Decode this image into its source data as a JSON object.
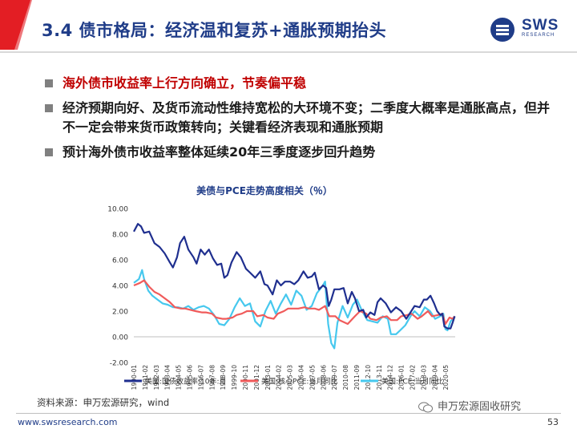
{
  "header": {
    "title": "3.4 债市格局：经济温和复苏+通胀预期抬头",
    "logo_text": "SWS",
    "logo_sub": "RESEARCH"
  },
  "bullets": [
    {
      "text": "海外债市收益率上行方向确立，节奏偏平稳",
      "highlight": true
    },
    {
      "text": "经济预期向好、及货币流动性维持宽松的大环境不变；二季度大概率是通胀高点，但并不一定会带来货币政策转向；关键看经济表现和通胀预期",
      "highlight": false
    },
    {
      "text": "预计海外债市收益率整体延续20年三季度逐步回升趋势",
      "highlight": false
    }
  ],
  "chart_data": {
    "type": "line",
    "title": "美债与PCE走势高度相关（％）",
    "ylim": [
      -2,
      10
    ],
    "yticks": [
      "10.00",
      "8.00",
      "6.00",
      "4.00",
      "2.00",
      "0.00",
      "-2.00"
    ],
    "x_start": 1990.0,
    "x_end": 2021.25,
    "xtick_labels": [
      "1990-01",
      "1991-02",
      "1992-03",
      "1993-04",
      "1994-05",
      "1995-06",
      "1996-07",
      "1997-08",
      "1998-09",
      "1999-10",
      "2000-11",
      "2001-12",
      "2003-01",
      "2004-02",
      "2005-03",
      "2006-04",
      "2007-05",
      "2008-06",
      "2009-07",
      "2010-08",
      "2011-09",
      "2012-10",
      "2013-11",
      "2014-12",
      "2016-01",
      "2017-02",
      "2018-03",
      "2019-04",
      "2020-05"
    ],
    "legend": [
      "美国:国债收益率:10年:月",
      "美国:核心PCE:当月同比",
      "美国:PCE:当月同比"
    ],
    "series": [
      {
        "name": "美国:国债收益率:10年:月",
        "color": "#1f2f8f",
        "x": [
          1990.0,
          1990.4,
          1990.7,
          1991.0,
          1991.5,
          1992.0,
          1992.5,
          1993.0,
          1993.5,
          1993.8,
          1994.2,
          1994.5,
          1994.9,
          1995.3,
          1995.8,
          1996.1,
          1996.5,
          1996.9,
          1997.3,
          1997.7,
          1998.1,
          1998.5,
          1998.8,
          1999.1,
          1999.5,
          2000.0,
          2000.4,
          2000.9,
          2001.3,
          2001.8,
          2002.3,
          2002.7,
          2003.0,
          2003.5,
          2003.9,
          2004.3,
          2004.7,
          2005.2,
          2005.6,
          2006.0,
          2006.5,
          2006.9,
          2007.3,
          2007.6,
          2008.0,
          2008.4,
          2008.7,
          2008.95,
          2009.2,
          2009.5,
          2010.0,
          2010.4,
          2010.8,
          2011.2,
          2011.5,
          2011.9,
          2012.3,
          2012.6,
          2013.0,
          2013.4,
          2013.7,
          2014.0,
          2014.5,
          2015.0,
          2015.5,
          2016.0,
          2016.5,
          2016.9,
          2017.3,
          2017.8,
          2018.2,
          2018.5,
          2018.85,
          2019.2,
          2019.5,
          2019.8,
          2020.0,
          2020.2,
          2020.5,
          2020.8,
          2021.0,
          2021.2
        ],
        "y": [
          8.2,
          8.8,
          8.6,
          8.1,
          8.2,
          7.3,
          7.0,
          6.5,
          5.8,
          5.4,
          6.2,
          7.3,
          7.8,
          6.8,
          6.2,
          5.7,
          6.8,
          6.4,
          6.8,
          6.1,
          5.6,
          5.7,
          4.6,
          4.8,
          5.8,
          6.6,
          6.2,
          5.3,
          5.0,
          4.6,
          5.1,
          4.1,
          4.0,
          3.3,
          4.4,
          4.0,
          4.3,
          4.3,
          4.1,
          4.4,
          5.1,
          4.6,
          4.7,
          5.0,
          3.7,
          4.0,
          3.8,
          2.4,
          2.9,
          3.7,
          3.7,
          3.8,
          2.6,
          3.5,
          3.0,
          2.0,
          2.1,
          1.5,
          1.9,
          1.7,
          2.7,
          3.0,
          2.6,
          1.9,
          2.3,
          2.0,
          1.4,
          1.9,
          2.4,
          2.3,
          2.9,
          2.9,
          3.2,
          2.6,
          2.0,
          1.7,
          1.8,
          0.8,
          0.65,
          0.65,
          1.1,
          1.6
        ]
      },
      {
        "name": "美国:核心PCE:当月同比",
        "color": "#f05b5b",
        "x": [
          1990.0,
          1990.6,
          1991.0,
          1991.5,
          1992.0,
          1992.5,
          1993.0,
          1993.5,
          1994.0,
          1994.6,
          1995.0,
          1995.5,
          1996.0,
          1996.6,
          1997.0,
          1997.6,
          1998.0,
          1998.6,
          1999.0,
          1999.6,
          2000.0,
          2000.5,
          2001.0,
          2001.6,
          2002.0,
          2002.6,
          2003.0,
          2003.6,
          2004.0,
          2004.6,
          2005.0,
          2005.6,
          2006.0,
          2006.6,
          2007.0,
          2007.6,
          2008.0,
          2008.6,
          2009.0,
          2009.6,
          2010.0,
          2010.8,
          2011.5,
          2012.0,
          2012.6,
          2013.0,
          2013.6,
          2014.0,
          2014.6,
          2015.0,
          2015.6,
          2016.0,
          2016.6,
          2017.0,
          2017.6,
          2018.0,
          2018.6,
          2019.0,
          2019.6,
          2020.0,
          2020.3,
          2020.7,
          2021.0,
          2021.2
        ],
        "y": [
          4.0,
          4.2,
          4.4,
          3.9,
          3.5,
          3.3,
          3.0,
          2.7,
          2.3,
          2.2,
          2.2,
          2.1,
          2.0,
          1.9,
          1.9,
          1.8,
          1.5,
          1.4,
          1.4,
          1.5,
          1.7,
          1.8,
          2.0,
          2.0,
          1.6,
          1.7,
          1.5,
          1.4,
          1.8,
          2.0,
          2.2,
          2.2,
          2.2,
          2.3,
          2.2,
          2.2,
          2.1,
          2.4,
          1.6,
          1.6,
          1.3,
          1.0,
          1.6,
          2.0,
          1.8,
          1.4,
          1.3,
          1.5,
          1.6,
          1.3,
          1.3,
          1.6,
          1.7,
          1.8,
          1.4,
          1.6,
          2.0,
          1.6,
          1.7,
          1.8,
          1.0,
          1.5,
          1.4,
          1.6
        ]
      },
      {
        "name": "美国:PCE:当月同比",
        "color": "#46c8ee",
        "x": [
          1990.0,
          1990.5,
          1990.8,
          1991.0,
          1991.4,
          1991.8,
          1992.3,
          1992.8,
          1993.3,
          1993.8,
          1994.3,
          1994.8,
          1995.3,
          1995.8,
          1996.3,
          1996.8,
          1997.3,
          1997.8,
          1998.3,
          1998.8,
          1999.3,
          1999.8,
          2000.3,
          2000.8,
          2001.3,
          2001.8,
          2002.3,
          2002.8,
          2003.3,
          2003.8,
          2004.3,
          2004.8,
          2005.3,
          2005.8,
          2006.3,
          2006.8,
          2007.3,
          2007.8,
          2008.3,
          2008.6,
          2008.9,
          2009.2,
          2009.5,
          2009.8,
          2010.3,
          2010.8,
          2011.3,
          2011.7,
          2012.2,
          2012.7,
          2013.2,
          2013.7,
          2014.2,
          2014.7,
          2015.0,
          2015.5,
          2015.9,
          2016.4,
          2016.9,
          2017.3,
          2017.8,
          2018.3,
          2018.8,
          2019.3,
          2019.8,
          2020.1,
          2020.3,
          2020.5,
          2020.8,
          2021.0,
          2021.2
        ],
        "y": [
          4.2,
          4.5,
          5.2,
          4.5,
          3.6,
          3.2,
          2.9,
          2.6,
          2.5,
          2.3,
          2.3,
          2.2,
          2.4,
          2.1,
          2.3,
          2.4,
          2.2,
          1.7,
          1.0,
          0.9,
          1.4,
          2.3,
          3.0,
          2.4,
          2.6,
          1.2,
          0.8,
          2.0,
          2.8,
          1.8,
          2.6,
          3.3,
          2.5,
          3.6,
          3.2,
          2.1,
          2.4,
          3.4,
          3.9,
          4.3,
          1.0,
          -0.5,
          -0.9,
          1.1,
          2.4,
          1.5,
          2.5,
          2.9,
          2.0,
          1.3,
          1.2,
          1.1,
          1.6,
          1.4,
          0.2,
          0.2,
          0.5,
          0.9,
          1.6,
          2.0,
          1.6,
          2.3,
          2.0,
          1.4,
          1.6,
          1.8,
          0.6,
          0.5,
          1.2,
          1.4,
          1.6
        ]
      }
    ]
  },
  "footer": {
    "source": "资料来源：申万宏源研究，wind",
    "url": "www.swsresearch.com",
    "page": "53",
    "watermark": "申万宏源固收研究"
  }
}
